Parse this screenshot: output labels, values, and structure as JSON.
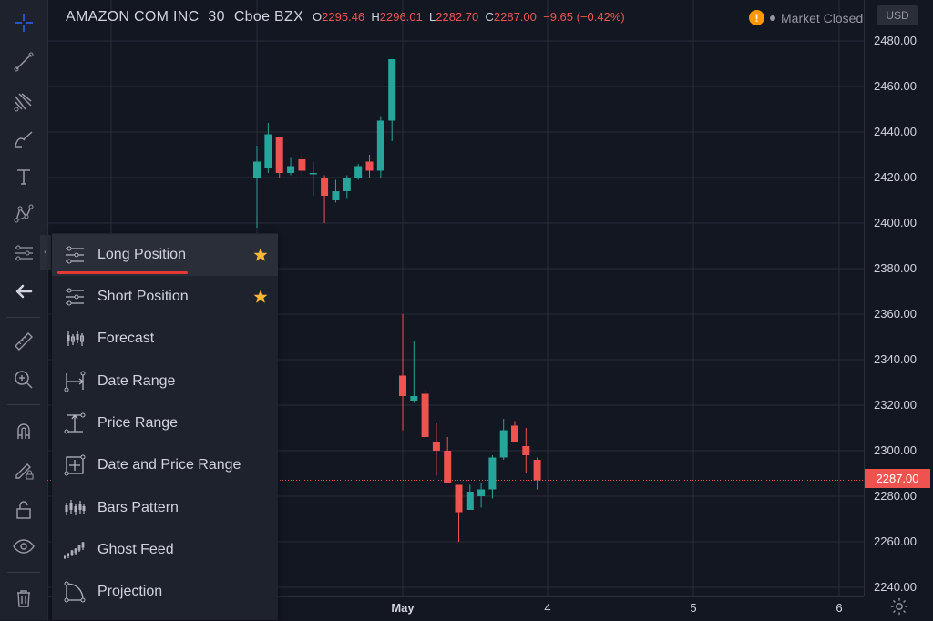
{
  "header": {
    "symbol": "AMAZON COM INC",
    "interval": "30",
    "exchange": "Cboe BZX",
    "open": {
      "label": "O",
      "value": "2295.46"
    },
    "high": {
      "label": "H",
      "value": "2296.01"
    },
    "low": {
      "label": "L",
      "value": "2282.70"
    },
    "close": {
      "label": "C",
      "value": "2287.00"
    },
    "change": "−9.65 (−0.42%)",
    "market_status": "Market Closed",
    "currency": "USD",
    "warning_icon": "warning-icon"
  },
  "last_price_label": "2287.00",
  "toolbar": {
    "icons": [
      "crosshair-icon",
      "trendline-icon",
      "pitchfork-icon",
      "brush-icon",
      "text-icon",
      "pattern-icon",
      "prediction-measure-icon",
      "back-arrow-icon",
      "ruler-icon",
      "zoom-in-icon",
      "magnet-icon",
      "lock-drawing-icon",
      "unlock-icon",
      "eye-icon",
      "trash-icon"
    ]
  },
  "menu": {
    "items": [
      {
        "label": "Long Position",
        "icon": "long-position-icon",
        "favorite": true
      },
      {
        "label": "Short Position",
        "icon": "short-position-icon",
        "favorite": true
      },
      {
        "label": "Forecast",
        "icon": "forecast-icon",
        "favorite": false
      },
      {
        "label": "Date Range",
        "icon": "date-range-icon",
        "favorite": false
      },
      {
        "label": "Price Range",
        "icon": "price-range-icon",
        "favorite": false
      },
      {
        "label": "Date and Price Range",
        "icon": "date-price-range-icon",
        "favorite": false
      },
      {
        "label": "Bars Pattern",
        "icon": "bars-pattern-icon",
        "favorite": false
      },
      {
        "label": "Ghost Feed",
        "icon": "ghost-feed-icon",
        "favorite": false
      },
      {
        "label": "Projection",
        "icon": "projection-icon",
        "favorite": false
      }
    ]
  },
  "colors": {
    "up": "#26a69a",
    "down": "#ef5350",
    "background": "#131722",
    "grid": "#2a2e39",
    "star": "#f7b733",
    "last_price": "#ef5350"
  },
  "chart_data": {
    "type": "candlestick",
    "ylim": [
      2240,
      2480
    ],
    "yticks": [
      "2480.00",
      "2460.00",
      "2440.00",
      "2420.00",
      "2400.00",
      "2380.00",
      "2360.00",
      "2340.00",
      "2320.00",
      "2300.00",
      "2280.00",
      "2260.00",
      "2240.00"
    ],
    "xticks": [
      "May",
      "4",
      "5",
      "6"
    ],
    "last_price": 2287.0,
    "session1": [
      {
        "o": 2420,
        "h": 2434,
        "l": 2398,
        "c": 2427
      },
      {
        "o": 2424,
        "h": 2444,
        "l": 2422,
        "c": 2439
      },
      {
        "o": 2438,
        "h": 2438,
        "l": 2420,
        "c": 2422
      },
      {
        "o": 2422,
        "h": 2429,
        "l": 2421,
        "c": 2425
      },
      {
        "o": 2428,
        "h": 2430,
        "l": 2420,
        "c": 2423
      },
      {
        "o": 2422,
        "h": 2427,
        "l": 2412,
        "c": 2422
      },
      {
        "o": 2420,
        "h": 2421,
        "l": 2400,
        "c": 2412
      },
      {
        "o": 2410,
        "h": 2419,
        "l": 2409,
        "c": 2414
      },
      {
        "o": 2414,
        "h": 2421,
        "l": 2411,
        "c": 2420
      },
      {
        "o": 2420,
        "h": 2426,
        "l": 2419,
        "c": 2425
      },
      {
        "o": 2427,
        "h": 2430,
        "l": 2420,
        "c": 2423
      },
      {
        "o": 2423,
        "h": 2447,
        "l": 2420,
        "c": 2445
      },
      {
        "o": 2445,
        "h": 2472,
        "l": 2436,
        "c": 2472
      }
    ],
    "session2": [
      {
        "o": 2333,
        "h": 2360,
        "l": 2309,
        "c": 2324
      },
      {
        "o": 2322,
        "h": 2348,
        "l": 2321,
        "c": 2324
      },
      {
        "o": 2325,
        "h": 2327,
        "l": 2307,
        "c": 2306
      },
      {
        "o": 2304,
        "h": 2312,
        "l": 2289,
        "c": 2300
      },
      {
        "o": 2300,
        "h": 2306,
        "l": 2286,
        "c": 2286
      },
      {
        "o": 2285,
        "h": 2285,
        "l": 2260,
        "c": 2273
      },
      {
        "o": 2274,
        "h": 2285,
        "l": 2274,
        "c": 2282
      },
      {
        "o": 2280,
        "h": 2286,
        "l": 2275,
        "c": 2283
      },
      {
        "o": 2283,
        "h": 2298,
        "l": 2279,
        "c": 2297
      },
      {
        "o": 2297,
        "h": 2314,
        "l": 2296,
        "c": 2309
      },
      {
        "o": 2311,
        "h": 2313,
        "l": 2304,
        "c": 2304
      },
      {
        "o": 2302,
        "h": 2310,
        "l": 2290,
        "c": 2298
      },
      {
        "o": 2296,
        "h": 2297,
        "l": 2283,
        "c": 2287
      }
    ]
  }
}
